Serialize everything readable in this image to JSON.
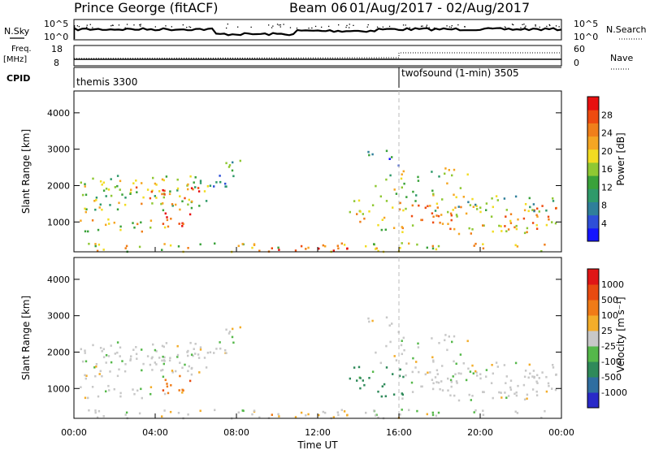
{
  "header": {
    "title": "Prince George (fitACF)",
    "beam": "Beam 06",
    "dates": "01/Aug/2017 - 02/Aug/2017"
  },
  "status": {
    "nsky_label": "N.Sky",
    "nsearch_label": "N.Search",
    "nsky_ticks": [
      "10^5",
      "10^0"
    ],
    "nsky_ticks_right": [
      "10^5",
      "10^0"
    ],
    "freq_label": "Freq.",
    "freq_unit": "[MHz]",
    "freq_ticks": [
      "18",
      "8"
    ],
    "nave_label": "Nave",
    "nave_ticks": [
      "60",
      "0"
    ],
    "cpid_label": "CPID",
    "cpid_modes": [
      {
        "name": "themis 3300",
        "start_hour": 0
      },
      {
        "name": "twofsound (1-min) 3505",
        "start_hour": 16
      }
    ]
  },
  "chart_data": [
    {
      "type": "heatmap",
      "name": "Power",
      "ylabel": "Slant Range [km]",
      "xlabel": "",
      "xlim": [
        0,
        24
      ],
      "ylim": [
        180,
        4600
      ],
      "yticks": [
        "1000",
        "2000",
        "3000",
        "4000"
      ],
      "colorbar": {
        "label": "Power [dB]",
        "range": [
          0,
          32
        ],
        "ticks": [
          "4",
          "8",
          "12",
          "16",
          "20",
          "24",
          "28"
        ],
        "colors": [
          "#1515ff",
          "#2e4fd8",
          "#2f7f9a",
          "#2f9a6a",
          "#3aa23a",
          "#8fc833",
          "#f2dc22",
          "#f5a623",
          "#f07f1a",
          "#ee4b10",
          "#e81010"
        ]
      }
    },
    {
      "type": "heatmap",
      "name": "Velocity",
      "ylabel": "Slant Range [km]",
      "xlabel": "Time UT",
      "xlim": [
        0,
        24
      ],
      "ylim": [
        180,
        4600
      ],
      "yticks": [
        "1000",
        "2000",
        "3000",
        "4000"
      ],
      "xticks": [
        "00:00",
        "04:00",
        "08:00",
        "12:00",
        "16:00",
        "20:00",
        "00:00"
      ],
      "colorbar": {
        "label": "Velocity [m s⁻¹]",
        "ticks": [
          "1000",
          "500",
          "100",
          "25",
          "-25",
          "-100",
          "-500",
          "-1000"
        ],
        "colors": [
          "#2929c8",
          "#2f6ea0",
          "#2f8a5a",
          "#55b84a",
          "#c8c8c8",
          "#f3ad2a",
          "#f07b17",
          "#e84a10",
          "#e01616"
        ]
      }
    }
  ]
}
